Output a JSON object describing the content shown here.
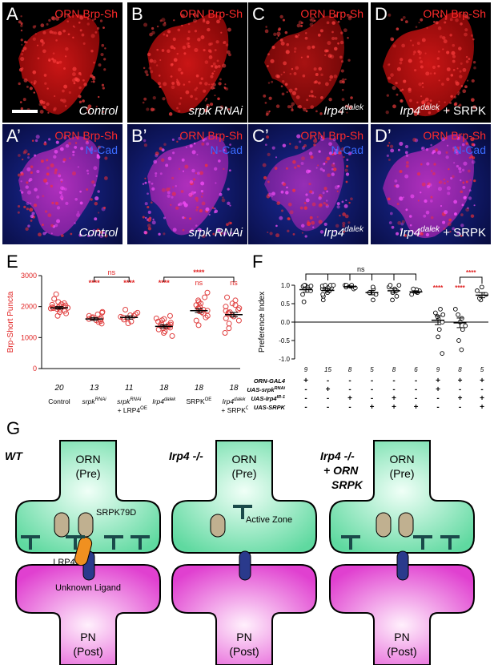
{
  "panels_top": [
    {
      "letter": "A",
      "stain": "ORN Brp-Sh",
      "cond": "Control"
    },
    {
      "letter": "B",
      "stain": "ORN Brp-Sh",
      "cond": "srpk RNAi"
    },
    {
      "letter": "C",
      "stain": "ORN Brp-Sh",
      "cond_main": "Irp4",
      "cond_sup": "dalek"
    },
    {
      "letter": "D",
      "stain": "ORN Brp-Sh",
      "cond_main": "Irp4",
      "cond_sup": "dalek",
      "cond_tail": " + SRPK"
    }
  ],
  "panels_bottom": [
    {
      "letter": "A’",
      "stain": "ORN Brp-Sh",
      "stain2": "N-Cad",
      "cond": "Control"
    },
    {
      "letter": "B’",
      "stain": "ORN Brp-Sh",
      "stain2": "N-Cad",
      "cond": "srpk RNAi"
    },
    {
      "letter": "C’",
      "stain": "ORN Brp-Sh",
      "stain2": "N-Cad",
      "cond_main": "Irp4",
      "cond_sup": "dalek"
    },
    {
      "letter": "D’",
      "stain": "ORN Brp-Sh",
      "stain2": "N-Cad",
      "cond_main": "Irp4",
      "cond_sup": "dalek",
      "cond_tail": " + SRPK"
    }
  ],
  "chart_data": [
    {
      "panel": "E",
      "type": "scatter",
      "ylabel": "Brp-Short Puncta",
      "ylim": [
        0,
        3000
      ],
      "yticks": [
        "0",
        "1000",
        "2000",
        "3000"
      ],
      "categories": [
        "Control",
        "srpk RNAi",
        "srpk RNAi + LRP4 OE",
        "Irp4 dalek",
        "SRPK OE",
        "Irp4 dalek + SRPK OE"
      ],
      "n": [
        "20",
        "13",
        "11",
        "18",
        "18",
        "18"
      ],
      "means": [
        1960,
        1600,
        1650,
        1360,
        1870,
        1740
      ],
      "sem": [
        40,
        45,
        50,
        50,
        60,
        70
      ],
      "points": [
        [
          1700,
          1780,
          1820,
          1860,
          1900,
          1920,
          1940,
          1950,
          1960,
          1970,
          1980,
          2000,
          2010,
          2040,
          2060,
          2080,
          2110,
          2150,
          2250,
          2400
        ],
        [
          1450,
          1500,
          1530,
          1560,
          1580,
          1600,
          1620,
          1640,
          1660,
          1700,
          1750,
          1800,
          1830
        ],
        [
          1460,
          1520,
          1580,
          1620,
          1650,
          1670,
          1700,
          1720,
          1760,
          1800,
          1900
        ],
        [
          1050,
          1150,
          1200,
          1260,
          1300,
          1320,
          1340,
          1360,
          1380,
          1400,
          1420,
          1450,
          1480,
          1520,
          1560,
          1600,
          1620,
          1700
        ],
        [
          1400,
          1550,
          1650,
          1700,
          1780,
          1820,
          1850,
          1870,
          1900,
          1920,
          1950,
          2000,
          2050,
          2100,
          2150,
          2200,
          2300,
          2450
        ],
        [
          1150,
          1300,
          1450,
          1550,
          1620,
          1680,
          1720,
          1760,
          1800,
          1820,
          1860,
          1900,
          1950,
          2000,
          2050,
          2100,
          2200,
          2300
        ]
      ],
      "sig_labels": [
        "",
        "****",
        "****",
        "****",
        "ns",
        "ns"
      ],
      "brackets": [
        {
          "from": 1,
          "to": 2,
          "label": "ns"
        },
        {
          "from": 3,
          "to": 5,
          "label": "****"
        }
      ],
      "xtick_parts": [
        {
          "m": "Control",
          "s": "",
          "l2": ""
        },
        {
          "m": "srpk",
          "s": "RNAi",
          "l2": ""
        },
        {
          "m": "srpk",
          "s": "RNAi",
          "l2": "+ LRP4"
        },
        {
          "m": "Irp4",
          "s": "dalek",
          "l2": ""
        },
        {
          "m": "SRPK",
          "s": "OE",
          "l2": ""
        },
        {
          "m": "Irp4",
          "s": "dalek",
          "l2": "+ SRPK"
        }
      ],
      "l2_sup": "OE"
    },
    {
      "panel": "F",
      "type": "scatter",
      "ylabel": "Preference Index",
      "ylim": [
        -1.0,
        1.0
      ],
      "yticks": [
        "1.0",
        "0.5",
        "0.0",
        "-0.5",
        "-1.0"
      ],
      "n": [
        "9",
        "15",
        "8",
        "5",
        "8",
        "6",
        "9",
        "8",
        "5"
      ],
      "means": [
        0.88,
        0.86,
        0.96,
        0.8,
        0.85,
        0.82,
        0.05,
        -0.02,
        0.73
      ],
      "sem": [
        0.07,
        0.05,
        0.02,
        0.06,
        0.06,
        0.03,
        0.12,
        0.13,
        0.07
      ],
      "points": [
        [
          0.55,
          0.75,
          0.85,
          0.92,
          0.95,
          0.97,
          0.98,
          1.0,
          1.0
        ],
        [
          0.6,
          0.7,
          0.75,
          0.8,
          0.85,
          0.88,
          0.9,
          0.92,
          0.95,
          0.96,
          0.97,
          0.98,
          1.0,
          1.0,
          1.0
        ],
        [
          0.9,
          0.93,
          0.95,
          0.97,
          0.98,
          1.0,
          1.0,
          1.0
        ],
        [
          0.6,
          0.75,
          0.8,
          0.9,
          0.95
        ],
        [
          0.6,
          0.7,
          0.8,
          0.85,
          0.9,
          0.95,
          1.0,
          1.0
        ],
        [
          0.75,
          0.8,
          0.82,
          0.85,
          0.88,
          0.9
        ],
        [
          -0.85,
          -0.4,
          -0.2,
          0.0,
          0.1,
          0.15,
          0.25,
          0.35,
          0.2
        ],
        [
          -0.75,
          -0.5,
          -0.2,
          -0.1,
          0.0,
          0.1,
          0.2,
          0.35
        ],
        [
          0.6,
          0.65,
          0.75,
          0.85,
          0.95
        ]
      ],
      "sig_labels": [
        "",
        "",
        "",
        "",
        "",
        "",
        "****",
        "****",
        ""
      ],
      "brackets": [
        {
          "from": 0,
          "to": 5,
          "label": "ns"
        },
        {
          "from": 7,
          "to": 8,
          "label": "****"
        }
      ],
      "rows": [
        {
          "label": "ORN-GAL4",
          "sup": "",
          "signs": [
            "+",
            "-",
            "-",
            "-",
            "-",
            "-",
            "+",
            "+",
            "+"
          ]
        },
        {
          "label": "UAS-srpk",
          "sup": "RNAi",
          "signs": [
            "-",
            "+",
            "-",
            "-",
            "-",
            "-",
            "+",
            "-",
            "-"
          ]
        },
        {
          "label": "UAS-Irp4",
          "sup": "IR-1",
          "signs": [
            "-",
            "-",
            "+",
            "-",
            "+",
            "-",
            "-",
            "+",
            "+"
          ]
        },
        {
          "label": "UAS-SRPK",
          "sup": "",
          "signs": [
            "-",
            "-",
            "-",
            "+",
            "+",
            "+",
            "-",
            "-",
            "+"
          ]
        }
      ]
    }
  ],
  "panel_letters": {
    "e": "E",
    "f": "F",
    "g": "G"
  },
  "diagram": {
    "wt_title": "WT",
    "mut_title": "Irp4 -/-",
    "res_title_1": "Irp4 -/-",
    "res_title_2": "+ ORN",
    "res_title_3": "SRPK",
    "orn": "ORN",
    "pre": "(Pre)",
    "pn": "PN",
    "post": "(Post)",
    "srpk": "SRPK79D",
    "lrp4": "LRP4",
    "ligand": "Unknown Ligand",
    "active_zone": "Active Zone",
    "colors": {
      "pre": "#5fd9a0",
      "post": "#e040d0",
      "ligand": "#2a3a8c",
      "lrp4": "#f09020",
      "srpk": "#c0b090",
      "tbar": "#1a4a4a"
    }
  }
}
